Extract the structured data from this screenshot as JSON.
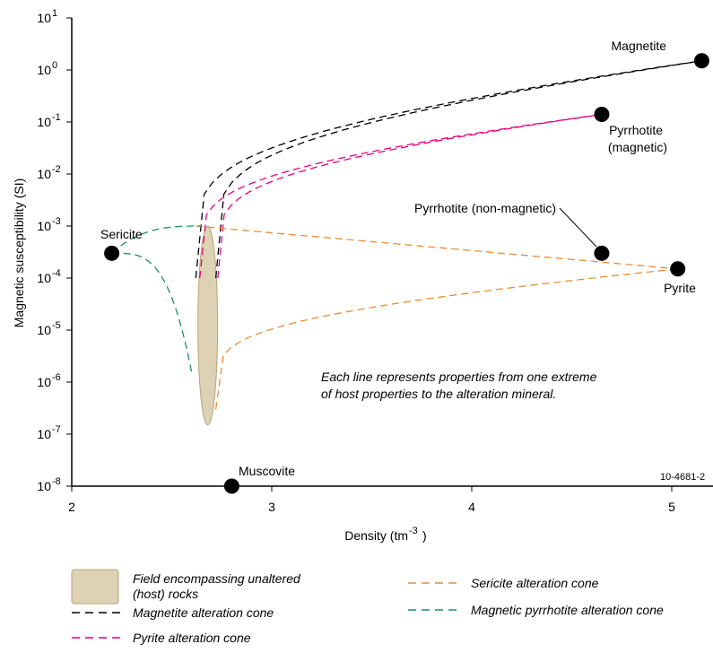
{
  "chart_data": {
    "type": "line",
    "xlabel": "Density (tm",
    "xlabel_sup": "-3",
    "xlabel_end": ")",
    "ylabel": "Magnetic susceptibility (SI)",
    "x_range": [
      2,
      5.2
    ],
    "y_scale": "log",
    "y_range_exponent": [
      -8,
      1
    ],
    "x_ticks": [
      "2",
      "3",
      "4",
      "5"
    ],
    "y_ticks": [
      {
        "base": "10",
        "exp": "1"
      },
      {
        "base": "10",
        "exp": "0"
      },
      {
        "base": "10",
        "exp": "-1"
      },
      {
        "base": "10",
        "exp": "-2"
      },
      {
        "base": "10",
        "exp": "-3"
      },
      {
        "base": "10",
        "exp": "-4"
      },
      {
        "base": "10",
        "exp": "-5"
      },
      {
        "base": "10",
        "exp": "-6"
      },
      {
        "base": "10",
        "exp": "-7"
      },
      {
        "base": "10",
        "exp": "-8"
      }
    ],
    "points": [
      {
        "label": "Magnetite",
        "x": 5.15,
        "y": 1.5
      },
      {
        "label": "Pyrrhotite\n(magnetic)",
        "x": 4.65,
        "y": 0.14
      },
      {
        "label": "Pyrrhotite (non-magnetic)",
        "x": 4.65,
        "y": 0.0003
      },
      {
        "label": "Pyrite",
        "x": 5.03,
        "y": 0.00015
      },
      {
        "label": "Sericite",
        "x": 2.2,
        "y": 0.0003
      },
      {
        "label": "Muscovite",
        "x": 2.8,
        "y": 1e-08
      }
    ],
    "host_field": {
      "x_center": 2.68,
      "y_min": 1.5e-07,
      "y_max": 0.001
    },
    "series": [
      {
        "name": "Magnetite alteration cone",
        "color": "#000000",
        "lines": [
          {
            "from": [
              2.62,
              0.0001
            ],
            "to": [
              5.15,
              1.5
            ]
          },
          {
            "from": [
              2.72,
              0.0001
            ],
            "to": [
              5.15,
              1.5
            ]
          }
        ]
      },
      {
        "name": "Pyrite alteration cone",
        "color": "#e6007e",
        "lines": [
          {
            "from": [
              2.64,
              0.0001
            ],
            "to": [
              4.65,
              0.14
            ]
          },
          {
            "from": [
              2.73,
              0.0001
            ],
            "to": [
              4.65,
              0.14
            ]
          }
        ]
      },
      {
        "name": "Sericite alteration cone",
        "color": "#f08a30",
        "lines": [
          {
            "from": [
              2.62,
              0.001
            ],
            "to": [
              5.03,
              0.00015
            ]
          },
          {
            "from": [
              2.72,
              3e-07
            ],
            "to": [
              5.03,
              0.00015
            ]
          }
        ]
      },
      {
        "name": "Magnetic pyrrhotite alteration cone",
        "color": "#1e8c6e",
        "lines": [
          {
            "from": [
              2.2,
              0.0003
            ],
            "to": [
              2.65,
              0.001
            ]
          },
          {
            "from": [
              2.2,
              0.0003
            ],
            "to": [
              2.6,
              1.5e-06
            ]
          }
        ]
      }
    ],
    "annotation": [
      "Each line represents properties from one extreme",
      "of host properties to the alteration mineral."
    ],
    "figure_id": "10-4681-2",
    "legend": [
      {
        "kind": "field",
        "text": [
          "Field encompassing unaltered",
          "(host) rocks"
        ],
        "color": "#ddd2b4"
      },
      {
        "kind": "line",
        "text": [
          "Magnetite alteration cone"
        ],
        "color": "#000000"
      },
      {
        "kind": "line",
        "text": [
          "Pyrite alteration cone"
        ],
        "color": "#e6007e"
      },
      {
        "kind": "line",
        "text": [
          "Sericite alteration cone"
        ],
        "color": "#f08a30"
      },
      {
        "kind": "line",
        "text": [
          "Magnetic pyrrhotite alteration cone"
        ],
        "color": "#1e8c6e"
      }
    ],
    "legend_placement": "bottom",
    "grid": false
  }
}
